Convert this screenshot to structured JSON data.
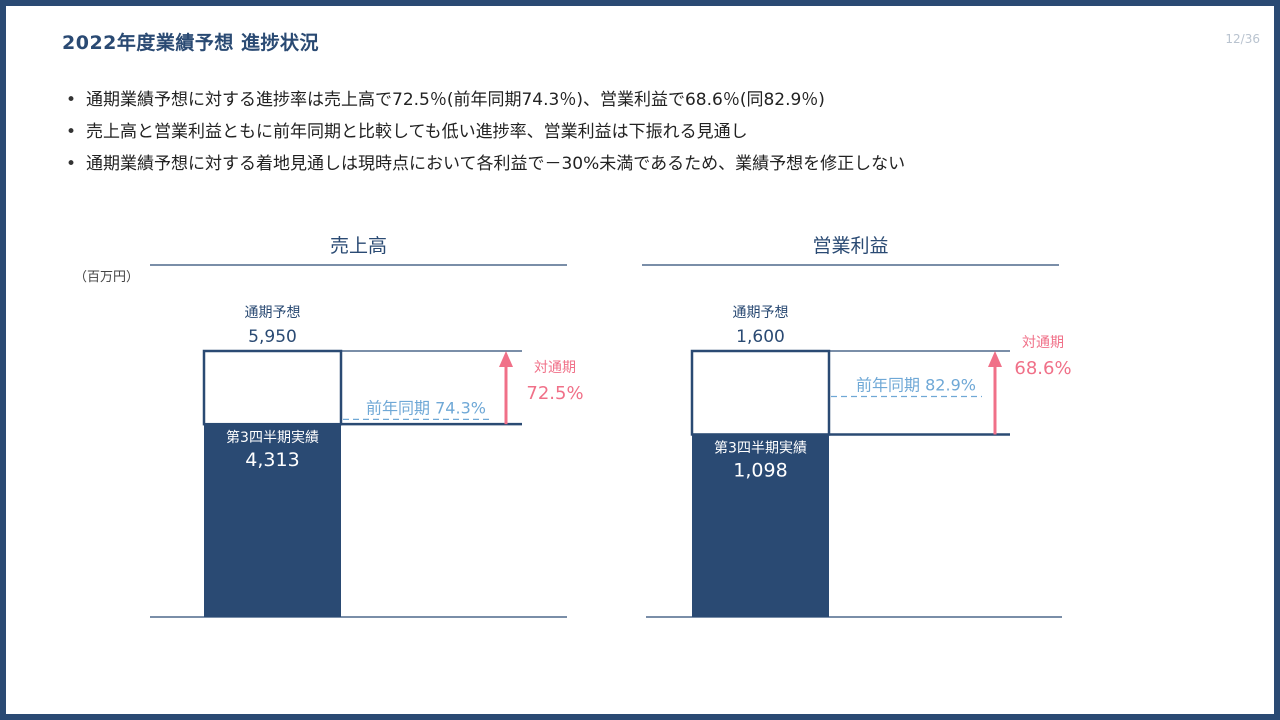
{
  "header": {
    "title": "2022年度業績予想 進捗状況",
    "page": "12/36"
  },
  "bullets": [
    "通期業績予想に対する進捗率は売上高で72.5％(前年同期74.3％)、営業利益で68.6％(同82.9％)",
    "売上高と営業利益ともに前年同期と比較しても低い進捗率、営業利益は下振れる見通し",
    "通期業績予想に対する着地見通しは現時点において各利益で－30%未満であるため、業績予想を修正しない"
  ],
  "unit_label": "（百万円）",
  "colors": {
    "bar_fill": "#2a4a73",
    "frame": "#2a4a73",
    "prior_year": "#6fa8d6",
    "progress": "#f07088"
  },
  "chart_data": [
    {
      "type": "bar",
      "title": "売上高",
      "forecast_label": "通期予想",
      "forecast_value": 5950,
      "forecast_text": "5,950",
      "actual_label": "第3四半期実績",
      "actual_value": 4313,
      "actual_text": "4,313",
      "prior_year_label": "前年同期 74.3%",
      "prior_year_ratio": 0.743,
      "progress_label": "対通期",
      "progress_text": "72.5%",
      "progress_ratio": 0.725
    },
    {
      "type": "bar",
      "title": "営業利益",
      "forecast_label": "通期予想",
      "forecast_value": 1600,
      "forecast_text": "1,600",
      "actual_label": "第3四半期実績",
      "actual_value": 1098,
      "actual_text": "1,098",
      "prior_year_label": "前年同期 82.9%",
      "prior_year_ratio": 0.829,
      "progress_label": "対通期",
      "progress_text": "68.6%",
      "progress_ratio": 0.686
    }
  ]
}
